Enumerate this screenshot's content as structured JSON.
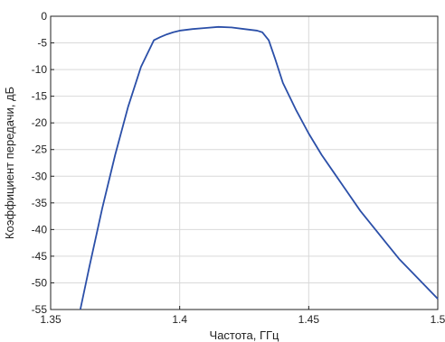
{
  "chart_data": {
    "type": "line",
    "title": "",
    "xlabel": "Частота, ГГц",
    "ylabel": "Коэффициент передачи, дБ",
    "xlim": [
      1.35,
      1.5
    ],
    "ylim": [
      -55,
      0
    ],
    "xticks": [
      1.35,
      1.4,
      1.45,
      1.5
    ],
    "xtick_labels": [
      "1.35",
      "1.4",
      "1.45",
      "1.5"
    ],
    "yticks": [
      0,
      -5,
      -10,
      -15,
      -20,
      -25,
      -30,
      -35,
      -40,
      -45,
      -50,
      -55
    ],
    "ytick_labels": [
      "0",
      "-5",
      "-10",
      "-15",
      "-20",
      "-25",
      "-30",
      "-35",
      "-40",
      "-45",
      "-50",
      "-55"
    ],
    "grid": true,
    "line_color": "#2b4fa8",
    "series": [
      {
        "x": [
          1.3615,
          1.365,
          1.37,
          1.375,
          1.38,
          1.385,
          1.39,
          1.3925,
          1.395,
          1.3975,
          1.4,
          1.405,
          1.41,
          1.415,
          1.42,
          1.425,
          1.43,
          1.432,
          1.4345,
          1.437,
          1.44,
          1.445,
          1.45,
          1.455,
          1.46,
          1.465,
          1.47,
          1.475,
          1.48,
          1.485,
          1.49,
          1.495,
          1.5
        ],
        "y": [
          -55,
          -47,
          -36,
          -26,
          -17,
          -9.5,
          -4.5,
          -3.9,
          -3.4,
          -3.0,
          -2.7,
          -2.4,
          -2.2,
          -2.0,
          -2.1,
          -2.4,
          -2.7,
          -3.0,
          -4.5,
          -8,
          -12.5,
          -17.5,
          -22,
          -26,
          -29.5,
          -33,
          -36.5,
          -39.5,
          -42.5,
          -45.5,
          -48,
          -50.5,
          -53
        ]
      }
    ]
  }
}
